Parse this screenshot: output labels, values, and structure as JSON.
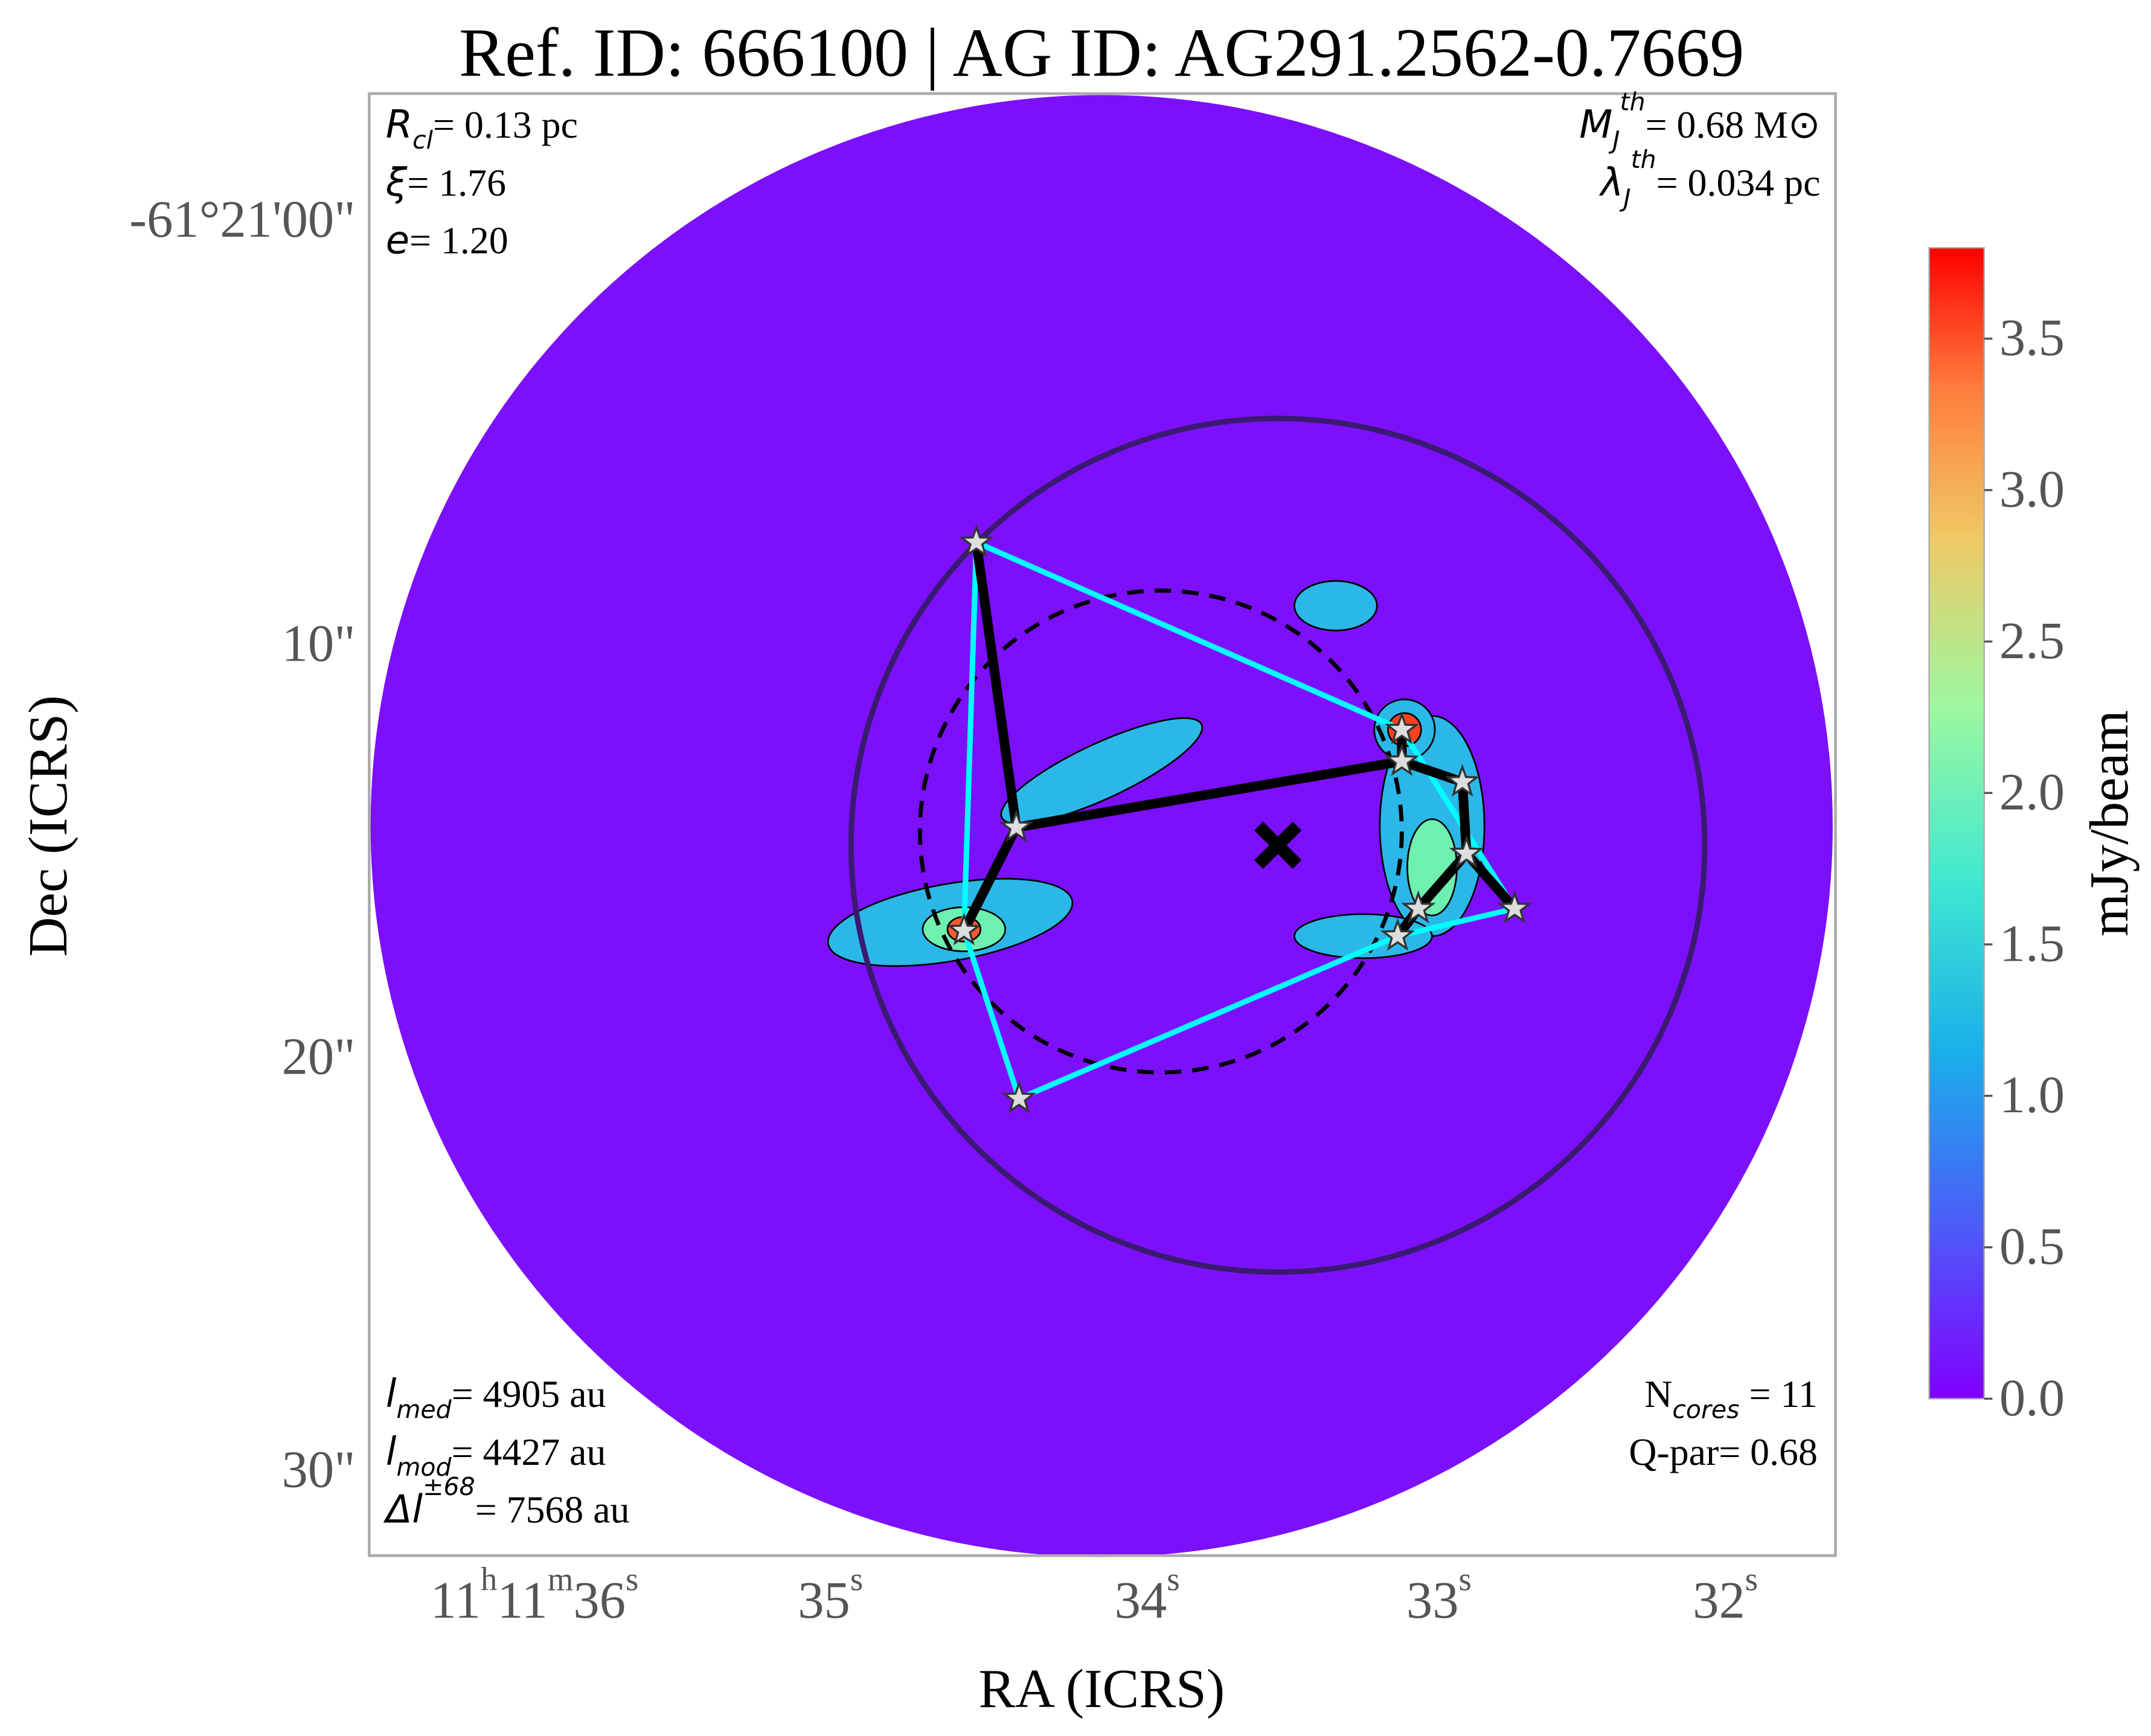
{
  "chart_data": {
    "type": "map",
    "title": "Ref. ID: 666100 | AG ID: AG291.2562-0.7669",
    "x_label": "RA (ICRS)",
    "y_label": "Dec (ICRS)",
    "x_ticks": [
      [
        "11",
        "h",
        "11",
        "m",
        "36",
        "s"
      ],
      [
        "35",
        "s"
      ],
      [
        "34",
        "s"
      ],
      [
        "33",
        "s"
      ],
      [
        "32",
        "s"
      ]
    ],
    "y_ticks": [
      "-61°21'00\"",
      "10\"",
      "20\"",
      "30\""
    ],
    "annotations": {
      "top_left": [
        {
          "symbol": "R",
          "sub": "cl",
          "text": "= 0.13 pc"
        },
        {
          "symbol": "ξ",
          "text": "= 1.76"
        },
        {
          "symbol": "e",
          "text": "= 1.20"
        }
      ],
      "top_right": [
        {
          "symbol": "M",
          "sub": "J",
          "sup": "th",
          "text": "= 0.68 M⊙"
        },
        {
          "symbol": "λ",
          "sub": "J",
          "sup": "th",
          "text": "= 0.034 pc"
        }
      ],
      "bottom_left": [
        {
          "symbol": "l",
          "sub": "med",
          "text": "= 4905 au"
        },
        {
          "symbol": "l",
          "sub": "mod",
          "text": "= 4427 au"
        },
        {
          "symbol": "Δl",
          "sup": "±68",
          "text": "= 7568 au"
        }
      ],
      "bottom_right": [
        {
          "text": "N",
          "sub": "cores",
          "text2": " = 11"
        },
        {
          "text": "Q-par= 0.68"
        }
      ]
    },
    "colorbar": {
      "label": "mJy/beam",
      "lim": [
        0,
        3.8
      ],
      "ticks": [
        {
          "value": 0,
          "label": "0.0"
        },
        0.5,
        {
          "value": 1,
          "label": "1.0"
        },
        1.5,
        {
          "value": 2,
          "label": "2.0"
        },
        2.5,
        {
          "value": 3,
          "label": "3.0"
        },
        3.5
      ]
    }
  }
}
